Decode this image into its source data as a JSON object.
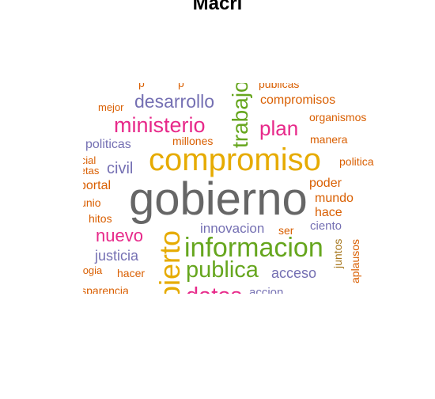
{
  "title": "Macri",
  "colors": {
    "gray": "#666666",
    "gold": "#E6AB02",
    "green": "#66A61E",
    "magenta": "#E7298A",
    "purple": "#7570B3",
    "orange": "#D95F02",
    "brown": "#A6761D"
  },
  "words": {
    "gobierno": "gobierno",
    "compromiso": "compromiso",
    "informacion": "informacion",
    "publica": "publica",
    "abierto": "abierto",
    "trabajo": "trabajo",
    "ministerio": "ministerio",
    "desarrollo": "desarrollo",
    "plan": "plan",
    "nuevo": "nuevo",
    "datos": "datos",
    "civil": "civil",
    "justicia": "justicia",
    "politicas": "politicas",
    "innovacion": "innovacion",
    "acceso": "acceso",
    "compromisos": "compromisos",
    "organismos": "organismos",
    "manera": "manera",
    "politica": "politica",
    "poder": "poder",
    "mundo": "mundo",
    "hace": "hace",
    "ciento": "ciento",
    "ser": "ser",
    "juntos": "juntos",
    "aplausos": "aplausos",
    "mejor": "mejor",
    "millones": "millones",
    "portal": "portal",
    "junio": "junio",
    "hitos": "hitos",
    "hacer": "hacer",
    "tecnologia": "tecnologia",
    "transparencia": "transparencia",
    "accion": "accion",
    "social": "social",
    "metas": "metas",
    "publicas": "publicas"
  }
}
